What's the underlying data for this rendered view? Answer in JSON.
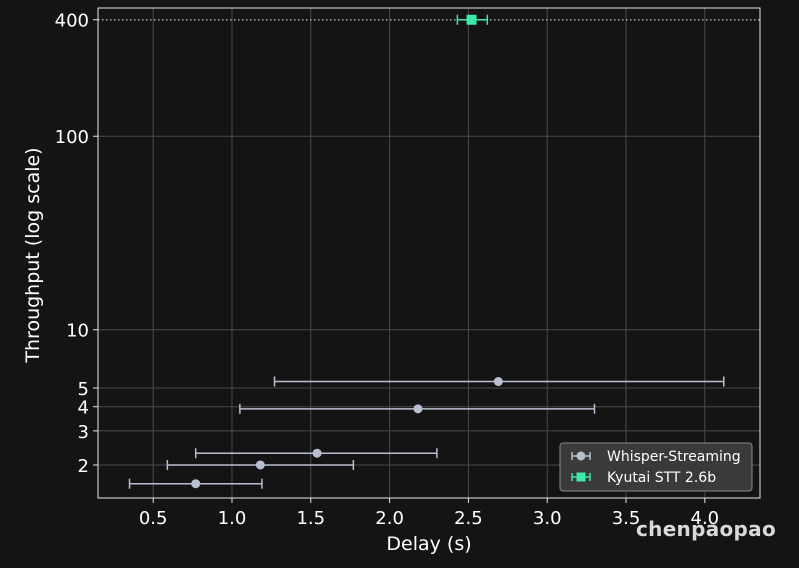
{
  "chart_data": {
    "type": "scatter",
    "title": "",
    "xlabel": "Delay (s)",
    "ylabel": "Throughput (log scale)",
    "yscale": "log",
    "xlim": [
      0.15,
      4.35
    ],
    "ylim": [
      1.35,
      460
    ],
    "xticks": [
      0.5,
      1.0,
      1.5,
      2.0,
      2.5,
      3.0,
      3.5,
      4.0
    ],
    "xtick_labels": [
      "0.5",
      "1.0",
      "1.5",
      "2.0",
      "2.5",
      "3.0",
      "3.5",
      "4.0"
    ],
    "yticks": [
      2,
      3,
      4,
      5,
      10,
      100,
      400
    ],
    "ytick_labels": [
      "2",
      "3",
      "4",
      "5",
      "10",
      "100",
      "400"
    ],
    "grid": true,
    "legend_position": "bottom-right",
    "reference_line": {
      "y": 400,
      "style": "dotted",
      "color": "#aaaaaa"
    },
    "series": [
      {
        "name": "Whisper-Streaming",
        "marker": "circle",
        "color": "#b9bfd0",
        "points": [
          {
            "x": 0.77,
            "y": 1.6,
            "xerr": [
              0.35,
              1.19
            ]
          },
          {
            "x": 1.18,
            "y": 2.0,
            "xerr": [
              0.59,
              1.77
            ]
          },
          {
            "x": 1.54,
            "y": 2.3,
            "xerr": [
              0.77,
              2.3
            ]
          },
          {
            "x": 2.18,
            "y": 3.9,
            "xerr": [
              1.05,
              3.3
            ]
          },
          {
            "x": 2.69,
            "y": 5.4,
            "xerr": [
              1.27,
              4.12
            ]
          }
        ]
      },
      {
        "name": "Kyutai STT 2.6b",
        "marker": "square",
        "color": "#3ee8a8",
        "points": [
          {
            "x": 2.52,
            "y": 400,
            "xerr": [
              2.43,
              2.62
            ]
          }
        ]
      }
    ]
  },
  "watermark": "chenpaopao"
}
